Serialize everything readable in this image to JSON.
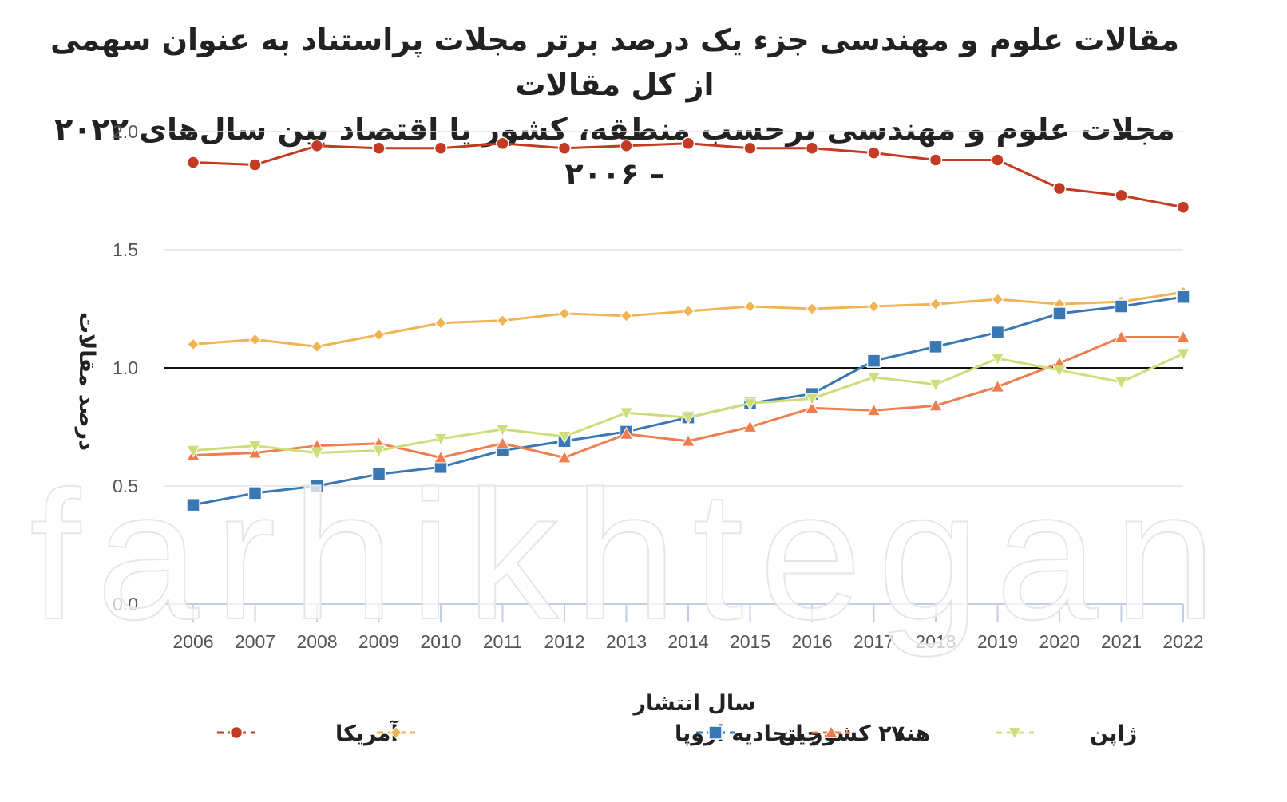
{
  "title": {
    "line1": "مقالات علوم و مهندسی جزء یک درصد برتر مجلات پراستناد به عنوان سهمی از کل مقالات",
    "line2": "مجلات علوم و مهندسی برحسب منطقه، کشور یا اقتصاد بین سال‌های ۲۰۲۲ – ۲۰۰۶"
  },
  "watermark": "farhikhtegan",
  "chart_data": {
    "type": "line",
    "title": "مقالات علوم و مهندسی جزء یک درصد برتر مجلات پراستناد به عنوان سهمی از کل مقالات مجلات علوم و مهندسی برحسب منطقه، کشور یا اقتصاد بین سال‌های ۲۰۲۲ – ۲۰۰۶",
    "xlabel": "سال انتشار",
    "ylabel": "درصد مقالات",
    "ylim": [
      0,
      2.0
    ],
    "yticks": [
      "0.0",
      "0.5",
      "1.0",
      "1.5",
      "2.0"
    ],
    "reference_line": 1.0,
    "grid": true,
    "legend_position": "bottom",
    "x": [
      "2006",
      "2007",
      "2008",
      "2009",
      "2010",
      "2011",
      "2012",
      "2013",
      "2014",
      "2015",
      "2016",
      "2017",
      "2018",
      "2019",
      "2020",
      "2021",
      "2022"
    ],
    "series": [
      {
        "name": "آمریکا",
        "color": "#c23b22",
        "marker": "circle",
        "values": [
          1.87,
          1.86,
          1.94,
          1.93,
          1.93,
          1.95,
          1.93,
          1.94,
          1.95,
          1.93,
          1.93,
          1.91,
          1.88,
          1.88,
          1.76,
          1.73,
          1.68
        ]
      },
      {
        "name": "۲۷ کشور اتحادیه اروپا",
        "color": "#f0b455",
        "marker": "diamond",
        "values": [
          1.1,
          1.12,
          1.09,
          1.14,
          1.19,
          1.2,
          1.23,
          1.22,
          1.24,
          1.26,
          1.25,
          1.26,
          1.27,
          1.29,
          1.27,
          1.28,
          1.32
        ]
      },
      {
        "name": "چین",
        "color": "#3a78b5",
        "marker": "square",
        "values": [
          0.42,
          0.47,
          0.5,
          0.55,
          0.58,
          0.65,
          0.69,
          0.73,
          0.79,
          0.85,
          0.89,
          1.03,
          1.09,
          1.15,
          1.23,
          1.26,
          1.3
        ]
      },
      {
        "name": "هند",
        "color": "#ef7d4e",
        "marker": "triangle-up",
        "values": [
          0.63,
          0.64,
          0.67,
          0.68,
          0.62,
          0.68,
          0.62,
          0.72,
          0.69,
          0.75,
          0.83,
          0.82,
          0.84,
          0.92,
          1.02,
          1.13,
          1.13
        ]
      },
      {
        "name": "ژاپن",
        "color": "#cfdc7a",
        "marker": "triangle-down",
        "values": [
          0.65,
          0.67,
          0.64,
          0.65,
          0.7,
          0.74,
          0.71,
          0.81,
          0.79,
          0.85,
          0.87,
          0.96,
          0.93,
          1.04,
          0.99,
          0.94,
          1.06
        ]
      }
    ]
  }
}
